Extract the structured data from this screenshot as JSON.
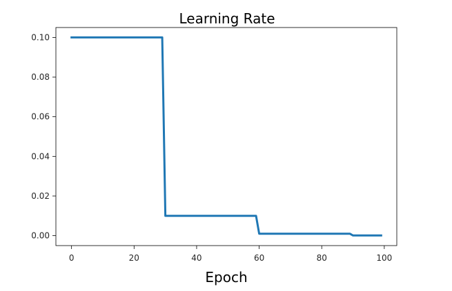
{
  "chart_data": {
    "type": "line",
    "title": "Learning Rate",
    "xlabel": "Epoch",
    "ylabel": "",
    "xlim": [
      -5,
      104
    ],
    "ylim": [
      -0.005,
      0.105
    ],
    "xticks": [
      0,
      20,
      40,
      60,
      80,
      100
    ],
    "yticks": [
      0.0,
      0.02,
      0.04,
      0.06,
      0.08,
      0.1
    ],
    "xtick_labels": [
      "0",
      "20",
      "40",
      "60",
      "80",
      "100"
    ],
    "ytick_labels": [
      "0.00",
      "0.02",
      "0.04",
      "0.06",
      "0.08",
      "0.10"
    ],
    "grid": false,
    "series": [
      {
        "color": "#1f77b4",
        "x": [
          0,
          29,
          30,
          59,
          60,
          89,
          90,
          99
        ],
        "y": [
          0.1,
          0.1,
          0.01,
          0.01,
          0.001,
          0.001,
          0.0001,
          0.0001
        ]
      }
    ]
  }
}
